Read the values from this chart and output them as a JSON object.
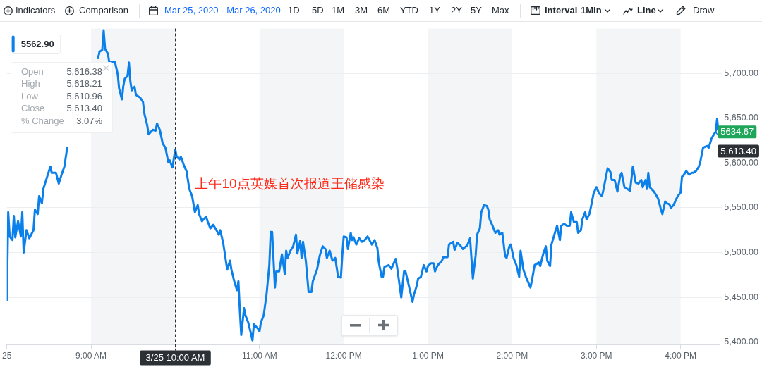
{
  "chart_data": {
    "type": "line",
    "x": [
      "2020-03-25T08:00",
      "2020-03-25T08:01",
      "2020-03-25T08:02",
      "2020-03-25T08:04",
      "2020-03-25T08:05",
      "2020-03-25T08:06",
      "2020-03-25T08:08",
      "2020-03-25T08:10",
      "2020-03-25T08:11",
      "2020-03-25T08:12",
      "2020-03-25T08:14",
      "2020-03-25T08:16",
      "2020-03-25T08:19",
      "2020-03-25T08:20",
      "2020-03-25T08:22",
      "2020-03-25T08:23",
      "2020-03-25T08:25",
      "2020-03-25T08:26",
      "2020-03-25T08:29",
      "2020-03-25T08:31",
      "2020-03-25T08:32",
      "2020-03-25T08:35",
      "2020-03-25T08:37",
      "2020-03-25T08:39",
      "2020-03-25T08:41",
      "2020-03-25T08:43",
      "2020-03-25T08:54",
      "2020-03-25T09:05",
      "2020-03-25T09:06",
      "2020-03-25T09:08",
      "2020-03-25T09:09",
      "2020-03-25T09:10",
      "2020-03-25T09:12",
      "2020-03-25T09:13",
      "2020-03-25T09:17",
      "2020-03-25T09:19",
      "2020-03-25T09:20",
      "2020-03-25T09:22",
      "2020-03-25T09:23",
      "2020-03-25T09:24",
      "2020-03-25T09:26",
      "2020-03-25T09:27",
      "2020-03-25T09:28",
      "2020-03-25T09:29",
      "2020-03-25T09:31",
      "2020-03-25T09:32",
      "2020-03-25T09:35",
      "2020-03-25T09:37",
      "2020-03-25T09:38",
      "2020-03-25T09:40",
      "2020-03-25T09:41",
      "2020-03-25T09:44",
      "2020-03-25T09:46",
      "2020-03-25T09:47",
      "2020-03-25T09:49",
      "2020-03-25T09:51",
      "2020-03-25T09:53",
      "2020-03-25T09:55",
      "2020-03-25T09:56",
      "2020-03-25T09:58",
      "2020-03-25T10:00",
      "2020-03-25T10:01",
      "2020-03-25T10:03",
      "2020-03-25T10:04",
      "2020-03-25T10:06",
      "2020-03-25T10:08",
      "2020-03-25T10:10",
      "2020-03-25T10:12",
      "2020-03-25T10:14",
      "2020-03-25T10:16",
      "2020-03-25T10:17",
      "2020-03-25T10:19",
      "2020-03-25T10:20",
      "2020-03-25T10:22",
      "2020-03-25T10:23",
      "2020-03-25T10:25",
      "2020-03-25T10:27",
      "2020-03-25T10:29",
      "2020-03-25T10:31",
      "2020-03-25T10:32",
      "2020-03-25T10:34",
      "2020-03-25T10:35",
      "2020-03-25T10:37",
      "2020-03-25T10:39",
      "2020-03-25T10:40",
      "2020-03-25T10:42",
      "2020-03-25T10:44",
      "2020-03-25T10:45",
      "2020-03-25T10:46",
      "2020-03-25T10:47",
      "2020-03-25T10:49",
      "2020-03-25T10:50",
      "2020-03-25T10:52",
      "2020-03-25T10:54",
      "2020-03-25T10:55",
      "2020-03-25T10:56",
      "2020-03-25T10:59",
      "2020-03-25T11:00",
      "2020-03-25T11:01",
      "2020-03-25T11:03",
      "2020-03-25T11:05",
      "2020-03-25T11:07",
      "2020-03-25T11:08",
      "2020-03-25T11:09",
      "2020-03-25T11:11",
      "2020-03-25T11:12",
      "2020-03-25T11:14",
      "2020-03-25T11:16",
      "2020-03-25T11:18",
      "2020-03-25T11:19",
      "2020-03-25T11:20",
      "2020-03-25T11:22",
      "2020-03-25T11:24",
      "2020-03-25T11:26",
      "2020-03-25T11:27",
      "2020-03-25T11:29",
      "2020-03-25T11:30",
      "2020-03-25T11:31",
      "2020-03-25T11:33",
      "2020-03-25T11:35",
      "2020-03-25T11:37",
      "2020-03-25T11:38",
      "2020-03-25T11:41",
      "2020-03-25T11:43",
      "2020-03-25T11:45",
      "2020-03-25T11:47",
      "2020-03-25T11:48",
      "2020-03-25T11:50",
      "2020-03-25T11:52",
      "2020-03-25T11:54",
      "2020-03-25T11:56",
      "2020-03-25T11:58",
      "2020-03-25T11:59",
      "2020-03-25T12:00",
      "2020-03-25T12:02",
      "2020-03-25T12:03",
      "2020-03-25T12:05",
      "2020-03-25T12:06",
      "2020-03-25T12:07",
      "2020-03-25T12:09",
      "2020-03-25T12:11",
      "2020-03-25T12:13",
      "2020-03-25T12:15",
      "2020-03-25T12:17",
      "2020-03-25T12:20",
      "2020-03-25T12:22",
      "2020-03-25T12:24",
      "2020-03-25T12:25",
      "2020-03-25T12:27",
      "2020-03-25T12:28",
      "2020-03-25T12:29",
      "2020-03-25T12:32",
      "2020-03-25T12:34",
      "2020-03-25T12:37",
      "2020-03-25T12:38",
      "2020-03-25T12:41",
      "2020-03-25T12:43",
      "2020-03-25T12:44",
      "2020-03-25T12:46",
      "2020-03-25T12:49",
      "2020-03-25T12:50",
      "2020-03-25T12:52",
      "2020-03-25T12:53",
      "2020-03-25T12:55",
      "2020-03-25T12:57",
      "2020-03-25T12:59",
      "2020-03-25T13:00",
      "2020-03-25T13:02",
      "2020-03-25T13:04",
      "2020-03-25T13:05",
      "2020-03-25T13:07",
      "2020-03-25T13:10",
      "2020-03-25T13:11",
      "2020-03-25T13:14",
      "2020-03-25T13:15",
      "2020-03-25T13:18",
      "2020-03-25T13:19",
      "2020-03-25T13:21",
      "2020-03-25T13:23",
      "2020-03-25T13:25",
      "2020-03-25T13:28",
      "2020-03-25T13:30",
      "2020-03-25T13:32",
      "2020-03-25T13:34",
      "2020-03-25T13:35",
      "2020-03-25T13:37",
      "2020-03-25T13:38",
      "2020-03-25T13:40",
      "2020-03-25T13:42",
      "2020-03-25T13:43",
      "2020-03-25T13:44",
      "2020-03-25T13:46",
      "2020-03-25T13:48",
      "2020-03-25T13:50",
      "2020-03-25T13:51",
      "2020-03-25T13:53",
      "2020-03-25T13:55",
      "2020-03-25T13:56",
      "2020-03-25T13:58",
      "2020-03-25T13:59",
      "2020-03-25T14:01",
      "2020-03-25T14:03",
      "2020-03-25T14:05",
      "2020-03-25T14:06",
      "2020-03-25T14:08",
      "2020-03-25T14:10",
      "2020-03-25T14:13",
      "2020-03-25T14:14",
      "2020-03-25T14:16",
      "2020-03-25T14:19",
      "2020-03-25T14:20",
      "2020-03-25T14:22",
      "2020-03-25T14:24",
      "2020-03-25T14:25",
      "2020-03-25T14:27",
      "2020-03-25T14:28",
      "2020-03-25T14:31",
      "2020-03-25T14:32",
      "2020-03-25T14:34",
      "2020-03-25T14:35",
      "2020-03-25T14:37",
      "2020-03-25T14:39",
      "2020-03-25T14:41",
      "2020-03-25T14:42",
      "2020-03-25T14:44",
      "2020-03-25T14:46",
      "2020-03-25T14:47",
      "2020-03-25T14:49",
      "2020-03-25T14:50",
      "2020-03-25T14:52",
      "2020-03-25T14:53",
      "2020-03-25T14:55",
      "2020-03-25T14:56",
      "2020-03-25T14:58",
      "2020-03-25T15:00",
      "2020-03-25T15:02",
      "2020-03-25T15:04",
      "2020-03-25T15:05",
      "2020-03-25T15:07",
      "2020-03-25T15:08",
      "2020-03-25T15:10",
      "2020-03-25T15:11",
      "2020-03-25T15:13",
      "2020-03-25T15:15",
      "2020-03-25T15:17",
      "2020-03-25T15:18",
      "2020-03-25T15:20",
      "2020-03-25T15:22",
      "2020-03-25T15:24",
      "2020-03-25T15:26",
      "2020-03-25T15:28",
      "2020-03-25T15:30",
      "2020-03-25T15:32",
      "2020-03-25T15:33",
      "2020-03-25T15:35",
      "2020-03-25T15:36",
      "2020-03-25T15:37",
      "2020-03-25T15:38",
      "2020-03-25T15:41",
      "2020-03-25T15:43",
      "2020-03-25T15:44",
      "2020-03-25T15:46",
      "2020-03-25T15:47",
      "2020-03-25T15:49",
      "2020-03-25T15:50",
      "2020-03-25T15:52",
      "2020-03-25T15:53",
      "2020-03-25T15:55",
      "2020-03-25T15:57",
      "2020-03-25T15:58",
      "2020-03-25T16:00",
      "2020-03-25T16:01",
      "2020-03-25T16:02",
      "2020-03-25T16:04",
      "2020-03-25T16:06",
      "2020-03-25T16:08",
      "2020-03-25T16:09",
      "2020-03-25T16:11",
      "2020-03-25T16:13",
      "2020-03-25T16:14",
      "2020-03-25T16:16",
      "2020-03-25T16:19",
      "2020-03-25T16:20",
      "2020-03-25T16:22",
      "2020-03-25T16:23",
      "2020-03-25T16:25",
      "2020-03-25T16:26",
      "2020-03-25T16:27"
    ],
    "series": [
      {
        "name": "5562.90",
        "color": "#0b80ea",
        "values": [
          5447,
          5545,
          5518,
          5514,
          5541,
          5517,
          5535,
          5518,
          5545,
          5500,
          5525,
          5516,
          5525,
          5548,
          5543,
          5563,
          5555,
          5571,
          5586,
          5596,
          5589,
          5589,
          5577,
          5587,
          5596,
          5617,
          null,
          5717,
          5724,
          5726,
          5748,
          5727,
          5722,
          5712,
          5713,
          5699,
          5683,
          5671,
          5686,
          5694,
          5697,
          5712,
          5691,
          5681,
          5685,
          5676,
          5673,
          5668,
          5655,
          5642,
          5632,
          5637,
          5636,
          5644,
          5637,
          5622,
          5617,
          5601,
          5603,
          5595,
          5615,
          5607,
          5604,
          5607,
          5598,
          5591,
          5571,
          5563,
          5545,
          5553,
          5543,
          5535,
          5537,
          5540,
          5535,
          5527,
          5531,
          5526,
          5520,
          5525,
          5512,
          5502,
          5481,
          5491,
          5481,
          5468,
          5458,
          5468,
          5435,
          5408,
          5438,
          5430,
          5422,
          5409,
          5402,
          5420,
          5415,
          5412,
          5422,
          5430,
          5453,
          5486,
          5523,
          5523,
          5461,
          5479,
          5479,
          5498,
          5476,
          5502,
          5494,
          5502,
          5507,
          5520,
          5499,
          5513,
          5494,
          5512,
          5491,
          5456,
          5456,
          5468,
          5481,
          5497,
          5507,
          5504,
          5494,
          5502,
          5491,
          5494,
          5473,
          5472,
          5497,
          5518,
          5517,
          5504,
          5522,
          5514,
          5517,
          5509,
          5516,
          5512,
          5514,
          5518,
          5509,
          5514,
          5505,
          5489,
          5473,
          5473,
          5484,
          5486,
          5482,
          5493,
          5484,
          5450,
          5479,
          5479,
          5466,
          5445,
          5453,
          5463,
          5471,
          5473,
          5486,
          5479,
          5485,
          5488,
          5488,
          5479,
          5486,
          5491,
          5495,
          5495,
          5509,
          5512,
          5503,
          5511,
          5508,
          5504,
          5508,
          5516,
          5471,
          5497,
          5520,
          5527,
          5545,
          5553,
          5552,
          5548,
          5537,
          5530,
          5522,
          5525,
          5520,
          5522,
          5496,
          5494,
          5507,
          5509,
          5494,
          5486,
          5473,
          5502,
          5481,
          5472,
          5461,
          5468,
          5486,
          5489,
          5485,
          5498,
          5507,
          5491,
          5485,
          5509,
          5525,
          5530,
          5514,
          5530,
          5532,
          5530,
          5530,
          5545,
          5534,
          5534,
          5522,
          5525,
          5537,
          5545,
          5537,
          5543,
          5550,
          5566,
          5573,
          5566,
          5563,
          5570,
          5586,
          5594,
          5590,
          5581,
          5581,
          5568,
          5586,
          5589,
          5573,
          5571,
          5569,
          5596,
          5578,
          5577,
          5581,
          5573,
          5581,
          5571,
          5589,
          5573,
          5568,
          5563,
          5560,
          5548,
          5543,
          5557,
          5555,
          5554,
          5550,
          5553,
          5560,
          5563,
          5567,
          5585,
          5586,
          5591,
          5587,
          5589,
          5589,
          5591,
          5596,
          5601,
          5617,
          5619,
          5617,
          5627,
          5630,
          5635,
          5649,
          5634.67
        ],
        "value_labels": [
          null,
          null,
          null,
          null,
          null,
          null,
          null,
          null,
          null,
          null,
          null,
          null,
          null,
          null,
          null,
          null,
          null,
          null,
          null,
          null,
          null,
          null,
          null,
          null,
          null,
          null,
          null,
          null,
          null,
          null,
          null,
          null,
          null,
          null,
          null,
          null,
          null,
          null,
          null,
          null,
          null,
          null,
          null,
          null,
          null,
          null,
          null,
          null,
          null,
          null,
          null,
          null,
          null,
          null,
          null,
          null,
          null,
          null,
          null,
          null,
          null,
          null,
          null,
          null,
          null,
          null,
          null,
          null,
          null,
          null,
          null,
          null,
          null,
          null,
          null,
          null,
          null,
          null,
          null,
          null,
          null,
          null,
          null,
          null,
          null,
          null,
          null,
          null,
          null,
          null,
          null,
          null,
          null,
          null,
          null,
          null,
          null,
          null,
          null,
          null,
          null,
          null,
          null,
          null,
          null,
          null,
          null,
          null,
          null,
          null,
          null,
          null,
          null,
          null,
          null,
          null,
          null,
          null,
          null,
          null,
          null,
          null,
          null,
          null,
          null,
          null,
          null,
          null,
          null,
          null,
          null,
          null,
          null,
          null,
          null,
          null,
          null,
          null,
          null,
          null,
          null,
          null,
          null,
          null,
          null,
          null,
          null,
          null,
          null,
          null,
          null,
          null,
          null,
          null,
          null,
          null,
          null,
          null,
          null,
          null,
          null,
          null,
          null,
          null,
          null,
          null,
          null,
          null,
          null,
          null,
          null,
          null,
          null,
          null,
          null,
          null,
          null,
          null,
          null,
          null,
          null,
          null,
          null,
          null,
          null,
          null,
          null,
          null,
          null,
          null,
          null,
          null,
          null,
          null,
          null,
          null,
          null,
          null,
          null,
          null,
          null,
          null,
          null,
          null,
          null,
          null,
          null,
          null,
          null,
          null,
          null,
          null,
          null,
          null,
          null,
          null,
          null,
          null,
          null,
          null,
          null,
          null,
          null,
          null,
          null,
          null,
          null,
          null,
          null,
          null,
          null,
          null,
          null,
          null,
          null,
          null,
          null,
          null,
          null,
          null,
          null,
          null,
          null,
          null,
          null,
          null,
          null,
          null,
          null,
          null,
          null,
          null,
          null,
          null,
          null,
          null,
          null,
          null,
          null,
          null,
          null,
          null,
          null,
          null,
          null,
          null,
          null,
          null,
          null,
          null,
          null,
          null,
          null,
          null,
          null,
          null,
          null,
          null,
          null,
          null,
          null,
          null,
          null,
          null,
          null,
          null,
          null,
          "5634.67"
        ]
      }
    ],
    "xlim": [
      "2020-03-25T08:00",
      "2020-03-25T16:28"
    ],
    "xticks": [
      {
        "value": "2020-03-25T08:00",
        "label": "25"
      },
      {
        "value": "2020-03-25T09:00",
        "label": "9:00 AM"
      },
      {
        "value": "2020-03-25T10:00",
        "label": null
      },
      {
        "value": "2020-03-25T11:00",
        "label": "11:00 AM"
      },
      {
        "value": "2020-03-25T12:00",
        "label": "12:00 PM"
      },
      {
        "value": "2020-03-25T13:00",
        "label": "1:00 PM"
      },
      {
        "value": "2020-03-25T14:00",
        "label": "2:00 PM"
      },
      {
        "value": "2020-03-25T15:00",
        "label": "3:00 PM"
      },
      {
        "value": "2020-03-25T16:00",
        "label": "4:00 PM"
      }
    ],
    "ylim": [
      5397,
      5750
    ],
    "yticks": [
      {
        "value": 5400,
        "label": "5,400.00"
      },
      {
        "value": 5450,
        "label": "5,450.00"
      },
      {
        "value": 5500,
        "label": "5,500.00"
      },
      {
        "value": 5550,
        "label": "5,550.00"
      },
      {
        "value": 5600,
        "label": "5,600.00"
      },
      {
        "value": 5650,
        "label": "5,650.00"
      },
      {
        "value": 5700,
        "label": "5,700.00"
      }
    ],
    "grid": "y",
    "legend": "top left",
    "marker": "none",
    "bands": [
      {
        "axis": "x",
        "from": "2020-03-25T09:00",
        "to": "2020-03-25T10:00",
        "color": "#f4f5f6"
      },
      {
        "axis": "x",
        "from": "2020-03-25T11:00",
        "to": "2020-03-25T12:00",
        "color": "#f4f5f6"
      },
      {
        "axis": "x",
        "from": "2020-03-25T13:00",
        "to": "2020-03-25T14:00",
        "color": "#f4f5f6"
      },
      {
        "axis": "x",
        "from": "2020-03-25T15:00",
        "to": "2020-03-25T16:00",
        "color": "#f4f5f6"
      }
    ],
    "ref_lines": [
      {
        "axis": "x",
        "value": "2020-03-25T10:00",
        "label": "3/25 10:00 AM",
        "color": "#2c3136",
        "line_style": "dashed"
      },
      {
        "axis": "y",
        "value": 5613.4,
        "label": "5,613.40",
        "color": "#2c3136",
        "line_style": "dashed"
      }
    ],
    "annotations": [
      {
        "text": "上午10点英媒首次报道王储感染",
        "x": "2020-03-25T10:00",
        "y": 5576
      },
      "Open 5,616.38",
      "High 5,618.21",
      "Low 5,610.96",
      "Close 5,613.40",
      "% Change 3.07%",
      "Indicators",
      "Comparison",
      "Mar 25, 2020 - Mar 26, 2020",
      "1D",
      "5D",
      "1M",
      "3M",
      "6M",
      "YTD",
      "1Y",
      "2Y",
      "5Y",
      "Max",
      "Interval",
      "1Min",
      "Line",
      "Draw"
    ]
  }
}
